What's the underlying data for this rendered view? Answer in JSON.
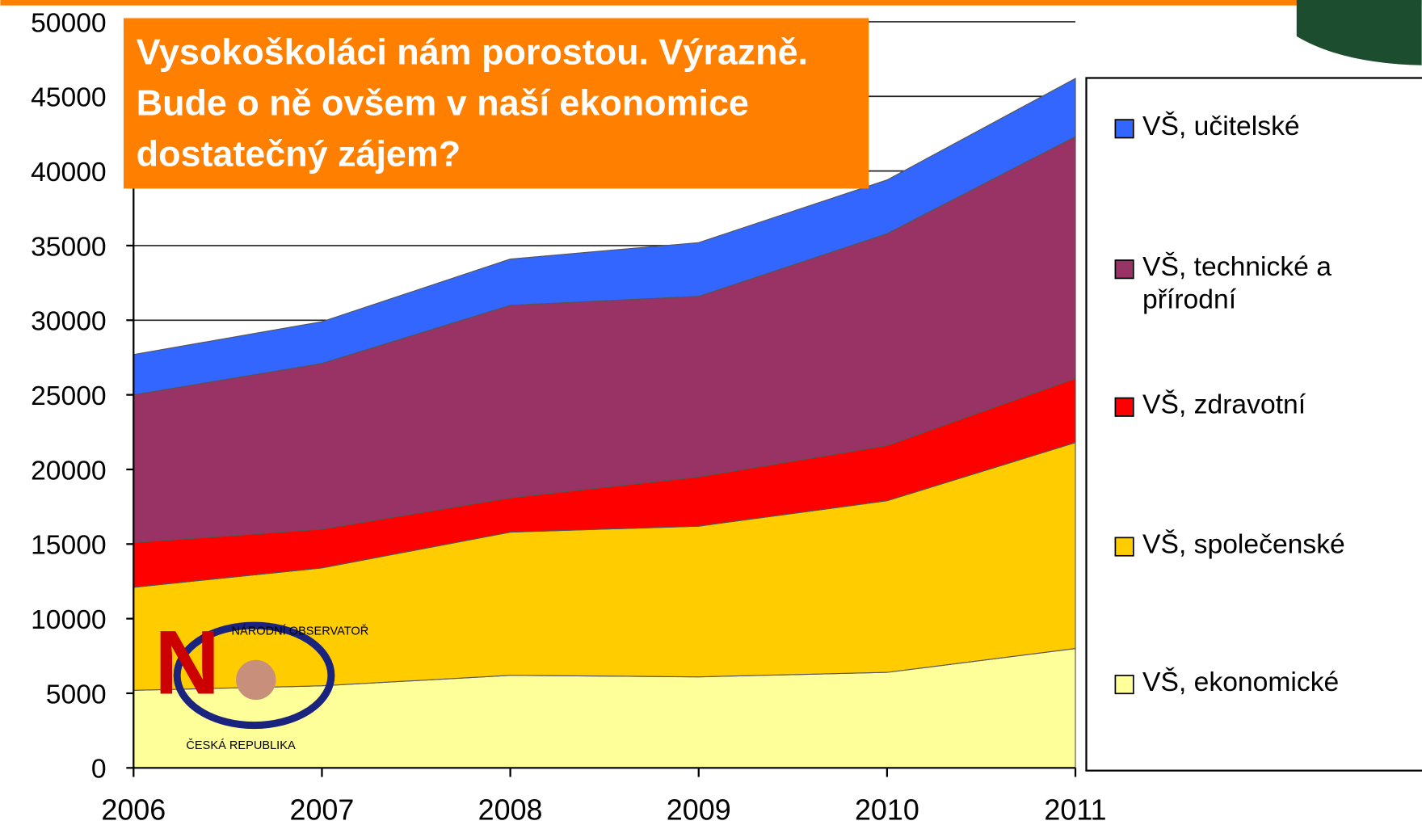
{
  "chart_data": {
    "type": "stacked-area",
    "title": "Vysokoškoláci nám porostou. Výrazně. Bude o ně ovšem v naší ekonomice dostatečný zájem?",
    "categories": [
      "2006",
      "2007",
      "2008",
      "2009",
      "2010",
      "2011"
    ],
    "series": [
      {
        "name": "VŠ, ekonomické",
        "color": "#ffff99",
        "values": [
          5200,
          5500,
          6200,
          6100,
          6400,
          8000
        ]
      },
      {
        "name": "VŠ, společenské",
        "color": "#ffcc00",
        "values": [
          6900,
          7900,
          9600,
          10100,
          11500,
          13800
        ]
      },
      {
        "name": "VŠ, zdravotní",
        "color": "#ff0000",
        "values": [
          3000,
          2600,
          2300,
          3300,
          3700,
          4300
        ]
      },
      {
        "name": "VŠ, technické a přírodní",
        "color": "#993366",
        "values": [
          9900,
          11100,
          12900,
          12100,
          14200,
          16200
        ]
      },
      {
        "name": "VŠ, učitelské",
        "color": "#3366ff",
        "values": [
          2700,
          2800,
          3100,
          3600,
          3600,
          3900
        ]
      }
    ],
    "ylim": [
      0,
      50000
    ],
    "yticks": [
      0,
      5000,
      10000,
      15000,
      20000,
      25000,
      30000,
      35000,
      40000,
      45000,
      50000
    ],
    "grid": true,
    "logo": {
      "top": "NÁRODNÍ OBSERVATOŘ",
      "bottom": "ČESKÁ REPUBLIKA"
    }
  }
}
